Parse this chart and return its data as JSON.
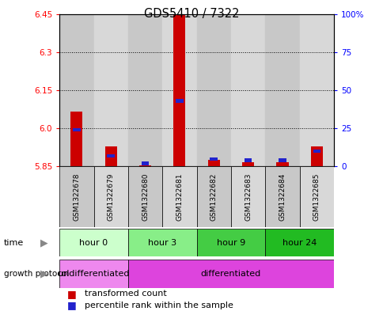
{
  "title": "GDS5410 / 7322",
  "samples": [
    "GSM1322678",
    "GSM1322679",
    "GSM1322680",
    "GSM1322681",
    "GSM1322682",
    "GSM1322683",
    "GSM1322684",
    "GSM1322685"
  ],
  "transformed_count": [
    6.065,
    5.93,
    5.855,
    6.445,
    5.875,
    5.865,
    5.865,
    5.93
  ],
  "percentile_rank": [
    24,
    7,
    2,
    43,
    5,
    4,
    4,
    10
  ],
  "ylim": [
    5.85,
    6.45
  ],
  "yticks_left": [
    5.85,
    6.0,
    6.15,
    6.3,
    6.45
  ],
  "yticks_right": [
    0,
    25,
    50,
    75,
    100
  ],
  "yticks_right_labels": [
    "0",
    "25",
    "50",
    "75",
    "100%"
  ],
  "bar_color_red": "#cc0000",
  "bar_color_blue": "#2222cc",
  "col_colors": [
    "#c8c8c8",
    "#d8d8d8"
  ],
  "time_groups": [
    {
      "label": "hour 0",
      "start": 0,
      "end": 2,
      "color": "#ccffcc"
    },
    {
      "label": "hour 3",
      "start": 2,
      "end": 4,
      "color": "#88ee88"
    },
    {
      "label": "hour 9",
      "start": 4,
      "end": 6,
      "color": "#44cc44"
    },
    {
      "label": "hour 24",
      "start": 6,
      "end": 8,
      "color": "#22bb22"
    }
  ],
  "growth_groups": [
    {
      "label": "undifferentiated",
      "start": 0,
      "end": 2,
      "color": "#ee88ee"
    },
    {
      "label": "differentiated",
      "start": 2,
      "end": 8,
      "color": "#dd44dd"
    }
  ],
  "legend_red_label": "transformed count",
  "legend_blue_label": "percentile rank within the sample"
}
